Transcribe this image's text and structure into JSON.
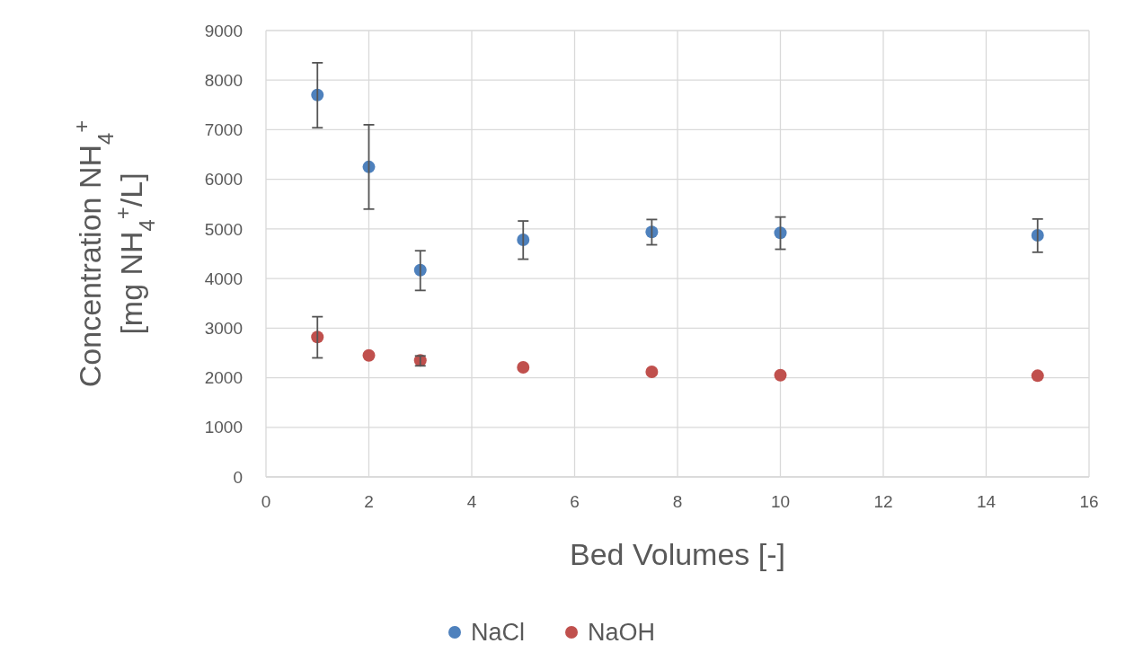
{
  "chart_data": {
    "type": "scatter",
    "xlabel": "Bed Volumes [-]",
    "ylabel": "Concentration NH$_{4}$$^{+}$\n[mg NH$_{4}$$^{+}$/L]",
    "x": [
      1,
      2,
      3,
      5,
      7.5,
      10,
      15
    ],
    "series": [
      {
        "name": "NaCl",
        "color": "#4e81bd",
        "values": [
          7700,
          6250,
          4170,
          4780,
          4940,
          4920,
          4870
        ],
        "errors": [
          [
            7040,
            8350
          ],
          [
            5400,
            7100
          ],
          [
            3760,
            4560
          ],
          [
            4390,
            5160
          ],
          [
            4680,
            5190
          ],
          [
            4590,
            5240
          ],
          [
            4530,
            5200
          ]
        ]
      },
      {
        "name": "NaOH",
        "color": "#c0504d",
        "values": [
          2820,
          2450,
          2350,
          2210,
          2120,
          2050,
          2040
        ],
        "errors": [
          [
            2400,
            3230
          ],
          null,
          [
            2240,
            2440
          ],
          null,
          null,
          null,
          null
        ]
      }
    ],
    "xlim": [
      0,
      16
    ],
    "xticks": [
      0,
      2,
      4,
      6,
      8,
      10,
      12,
      14,
      16
    ],
    "ylim": [
      0,
      9000
    ],
    "yticks": [
      0,
      1000,
      2000,
      3000,
      4000,
      5000,
      6000,
      7000,
      8000,
      9000
    ],
    "grid": true,
    "legend": "bottom",
    "marker": "circle"
  }
}
